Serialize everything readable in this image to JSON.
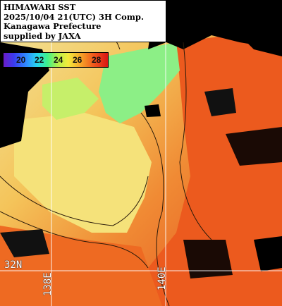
{
  "title": {
    "line1": "HIMAWARI SST",
    "line2": "2025/10/04 21(UTC) 3H Comp.",
    "line3": "Kanagawa Prefecture",
    "line4": "supplied by JAXA"
  },
  "legend": {
    "ticks": [
      "20",
      "22",
      "24",
      "26",
      "28"
    ],
    "colors": [
      "#6a1cc8",
      "#2f8cff",
      "#3ef08a",
      "#f4ea3c",
      "#f6a428",
      "#d81414"
    ]
  },
  "grid_labels": {
    "lat": "32N",
    "lon1": "138E",
    "lon2": "140E"
  },
  "colors": {
    "land": "#000000",
    "cloud": "#000000",
    "warm": "#ec4a1c",
    "mid": "#f39a36",
    "cool": "#f4e46c",
    "coastal": "#7ef08c",
    "gridline": "#ffffff"
  }
}
